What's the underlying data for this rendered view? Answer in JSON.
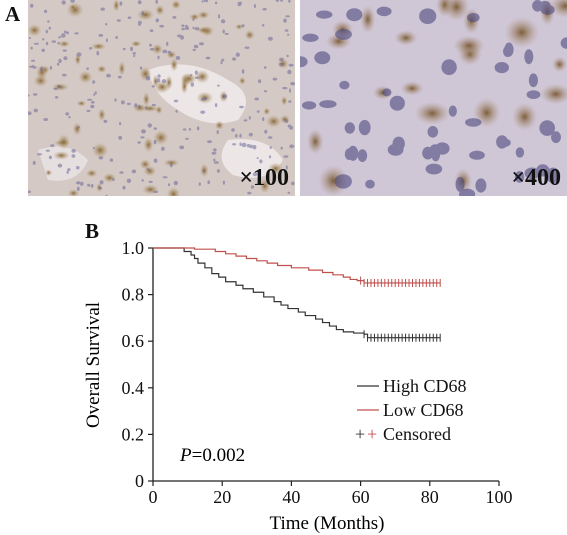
{
  "panel_a": {
    "label": "A",
    "images": [
      {
        "magnification": "×100"
      },
      {
        "magnification": "×400"
      }
    ]
  },
  "panel_b": {
    "label": "B",
    "p_value_prefix": "P",
    "p_value_suffix": "=0.002"
  },
  "chart_data": {
    "type": "line",
    "title": "",
    "xlabel": "Time (Months)",
    "ylabel": "Overall Survival",
    "xlim": [
      0,
      100
    ],
    "ylim": [
      0,
      1.0
    ],
    "x_ticks": [
      0,
      20,
      40,
      60,
      80,
      100
    ],
    "y_ticks": [
      0,
      0.2,
      0.4,
      0.6,
      0.8,
      1.0
    ],
    "y_tick_labels": [
      "0",
      "0.2",
      "0.4",
      "0.6",
      "0.8",
      "1.0"
    ],
    "grid": false,
    "legend_position": "right",
    "series": [
      {
        "name": "High CD68",
        "color": "#333333",
        "steps": [
          [
            0,
            1.0
          ],
          [
            8,
            1.0
          ],
          [
            9,
            0.985
          ],
          [
            11,
            0.97
          ],
          [
            12,
            0.955
          ],
          [
            13,
            0.935
          ],
          [
            15,
            0.915
          ],
          [
            17,
            0.89
          ],
          [
            19,
            0.875
          ],
          [
            21,
            0.855
          ],
          [
            24,
            0.84
          ],
          [
            26,
            0.825
          ],
          [
            29,
            0.81
          ],
          [
            32,
            0.79
          ],
          [
            35,
            0.77
          ],
          [
            37,
            0.755
          ],
          [
            39,
            0.74
          ],
          [
            42,
            0.725
          ],
          [
            44,
            0.71
          ],
          [
            47,
            0.695
          ],
          [
            49,
            0.68
          ],
          [
            51,
            0.665
          ],
          [
            53,
            0.65
          ],
          [
            55,
            0.64
          ],
          [
            58,
            0.635
          ],
          [
            61,
            0.63
          ],
          [
            62,
            0.615
          ],
          [
            83,
            0.615
          ]
        ],
        "censored_x": [
          61,
          62,
          63,
          64,
          65,
          66,
          67,
          68,
          69,
          70,
          71,
          72,
          73,
          74,
          75,
          76,
          77,
          78,
          79,
          80,
          81,
          82,
          83
        ]
      },
      {
        "name": "Low CD68",
        "color": "#c0504d",
        "steps": [
          [
            0,
            1.0
          ],
          [
            10,
            1.0
          ],
          [
            12,
            0.995
          ],
          [
            18,
            0.985
          ],
          [
            21,
            0.975
          ],
          [
            24,
            0.965
          ],
          [
            27,
            0.955
          ],
          [
            30,
            0.945
          ],
          [
            33,
            0.935
          ],
          [
            36,
            0.925
          ],
          [
            40,
            0.915
          ],
          [
            45,
            0.905
          ],
          [
            49,
            0.895
          ],
          [
            52,
            0.885
          ],
          [
            55,
            0.875
          ],
          [
            57,
            0.865
          ],
          [
            59,
            0.86
          ],
          [
            61,
            0.85
          ],
          [
            83,
            0.85
          ]
        ],
        "censored_x": [
          60,
          61,
          62,
          63,
          64,
          65,
          66,
          67,
          68,
          69,
          70,
          71,
          72,
          73,
          74,
          75,
          76,
          77,
          78,
          79,
          80,
          81,
          82,
          83
        ]
      }
    ],
    "legend": [
      "High CD68",
      "Low CD68",
      "Censored"
    ],
    "annotation": "P=0.002"
  }
}
